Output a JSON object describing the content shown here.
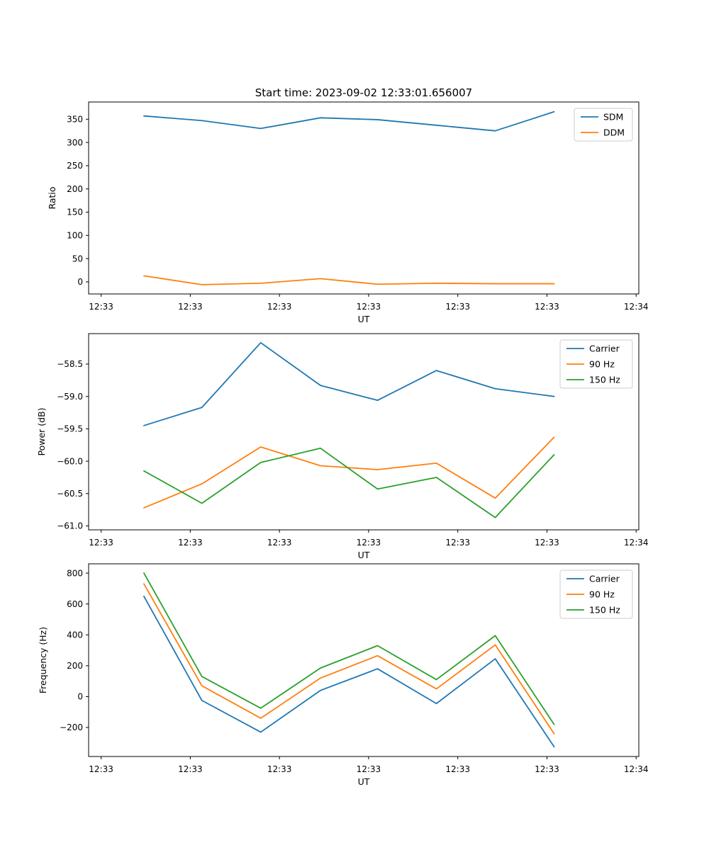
{
  "figure": {
    "title": "Start time: 2023-09-02 12:33:01.656007",
    "background": "#ffffff"
  },
  "colors": {
    "blue": "#1f77b4",
    "orange": "#ff7f0e",
    "green": "#2ca02c"
  },
  "axis": {
    "xlabel": "UT",
    "xlim": [
      -1.4,
      60.3
    ],
    "xtick_seconds": [
      0,
      10,
      20,
      30,
      40,
      50,
      60
    ],
    "xtick_labels": [
      "12:33",
      "12:33",
      "12:33",
      "12:33",
      "12:33",
      "12:33",
      "12:34"
    ],
    "x_points_seconds": [
      4.8,
      11.3,
      17.9,
      24.6,
      31.0,
      37.6,
      44.2,
      50.8
    ]
  },
  "chart_data": [
    {
      "type": "line",
      "title": "Start time: 2023-09-02 12:33:01.656007",
      "ylabel": "Ratio",
      "xlabel": "UT",
      "ylim": [
        -26,
        387
      ],
      "grid": false,
      "legend_position": "upper right",
      "ytick_values": [
        0,
        50,
        100,
        150,
        200,
        250,
        300,
        350
      ],
      "ytick_labels": [
        "0",
        "50",
        "100",
        "150",
        "200",
        "250",
        "300",
        "350"
      ],
      "series": [
        {
          "name": "SDM",
          "color": "#1f77b4",
          "values": [
            357,
            347,
            330,
            353,
            349,
            337,
            325,
            366
          ]
        },
        {
          "name": "DDM",
          "color": "#ff7f0e",
          "values": [
            13,
            -6,
            -3,
            7,
            -5,
            -3,
            -4,
            -4
          ]
        }
      ]
    },
    {
      "type": "line",
      "title": "",
      "ylabel": "Power (dB)",
      "xlabel": "UT",
      "ylim": [
        -61.06,
        -58.03
      ],
      "grid": false,
      "legend_position": "upper right",
      "ytick_values": [
        -58.5,
        -59.0,
        -59.5,
        -60.0,
        -60.5,
        -61.0
      ],
      "ytick_labels": [
        "−58.5",
        "−59.0",
        "−59.5",
        "−60.0",
        "−60.5",
        "−61.0"
      ],
      "series": [
        {
          "name": "Carrier",
          "color": "#1f77b4",
          "values": [
            -59.45,
            -59.17,
            -58.17,
            -58.83,
            -59.06,
            -58.6,
            -58.88,
            -59.0
          ]
        },
        {
          "name": "90 Hz",
          "color": "#ff7f0e",
          "values": [
            -60.72,
            -60.35,
            -59.78,
            -60.07,
            -60.13,
            -60.03,
            -60.57,
            -59.63
          ]
        },
        {
          "name": "150 Hz",
          "color": "#2ca02c",
          "values": [
            -60.15,
            -60.65,
            -60.02,
            -59.8,
            -60.43,
            -60.25,
            -60.87,
            -59.9
          ]
        }
      ]
    },
    {
      "type": "line",
      "title": "",
      "ylabel": "Frequency (Hz)",
      "xlabel": "UT",
      "ylim": [
        -388,
        860
      ],
      "grid": false,
      "legend_position": "upper right",
      "ytick_values": [
        800,
        600,
        400,
        200,
        0,
        -200
      ],
      "ytick_labels": [
        "800",
        "600",
        "400",
        "200",
        "0",
        "−200"
      ],
      "series": [
        {
          "name": "Carrier",
          "color": "#1f77b4",
          "values": [
            650,
            -25,
            -230,
            40,
            180,
            -45,
            245,
            -325
          ]
        },
        {
          "name": "90 Hz",
          "color": "#ff7f0e",
          "values": [
            730,
            70,
            -140,
            120,
            265,
            50,
            335,
            -240
          ]
        },
        {
          "name": "150 Hz",
          "color": "#2ca02c",
          "values": [
            800,
            130,
            -75,
            185,
            330,
            110,
            395,
            -180
          ]
        }
      ]
    }
  ]
}
